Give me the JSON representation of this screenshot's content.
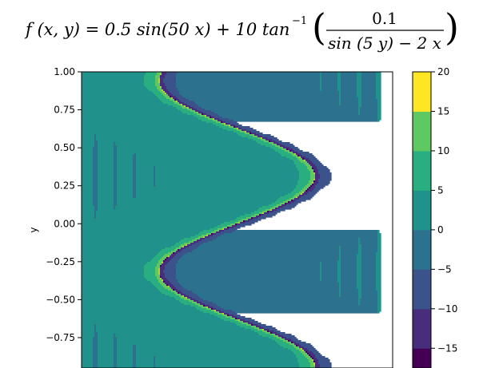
{
  "chart_data": {
    "type": "heatmap",
    "title": {
      "lhs": "f (x, y) = 0.5 sin(50 x) + 10 tan",
      "superscript": "−1",
      "numerator": "0.1",
      "denominator": "sin (5 y) − 2 x"
    },
    "ylabel": "y",
    "ylim": [
      -0.95,
      1.0
    ],
    "yticks": [
      "1.00",
      "0.75",
      "0.50",
      "0.25",
      "0.00",
      "−0.25",
      "−0.50",
      "−0.75"
    ],
    "ytick_values": [
      1.0,
      0.75,
      0.5,
      0.25,
      0.0,
      -0.25,
      -0.5,
      -0.75
    ],
    "xlim": [
      -1.0,
      1.0
    ],
    "function": "f(x,y) = 0.5 sin(50x) + 10 atan(0.1/(sin(5y) - 2x))",
    "colormap": "viridis",
    "levels": [
      -20,
      -15,
      -10,
      -5,
      0,
      5,
      10,
      15,
      20
    ],
    "colorbar": {
      "ticks": [
        "20",
        "15",
        "10",
        "5",
        "0",
        "−5",
        "−10",
        "−15"
      ],
      "tick_values": [
        20,
        15,
        10,
        5,
        0,
        -5,
        -10,
        -15
      ],
      "range": [
        -17.5,
        20
      ],
      "colors": [
        "#440154",
        "#472d7b",
        "#3b528b",
        "#2c728e",
        "#21918c",
        "#28ae80",
        "#5ec962",
        "#addc30",
        "#fde725"
      ]
    }
  }
}
